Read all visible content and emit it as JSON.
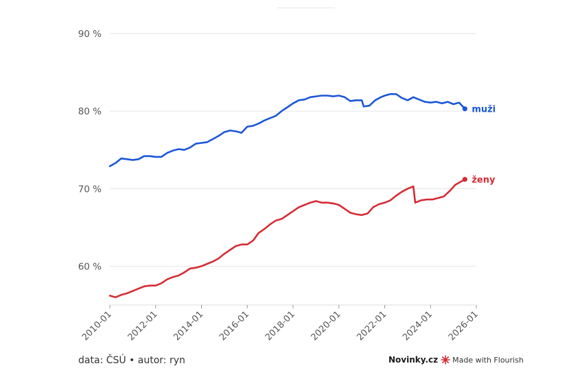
{
  "footer": {
    "source_text": "data: ČSÚ • autor: ryn",
    "brand": "Novinky.cz",
    "made_with": "Made with Flourish"
  },
  "chart_data": {
    "type": "line",
    "ylim": [
      55,
      90
    ],
    "yticks": [
      60,
      70,
      80,
      90
    ],
    "ytick_labels": [
      "60 %",
      "70 %",
      "80 %",
      "90 %"
    ],
    "xlim": [
      "2010-01",
      "2026-01"
    ],
    "xticks": [
      "2010-01",
      "2012-01",
      "2014-01",
      "2016-01",
      "2018-01",
      "2020-01",
      "2022-01",
      "2024-01",
      "2026-01"
    ],
    "grid": true,
    "series": [
      {
        "name": "muži",
        "color": "#1a56d6",
        "points": [
          [
            "2010-01",
            72.9
          ],
          [
            "2010-04",
            73.3
          ],
          [
            "2010-07",
            73.9
          ],
          [
            "2010-10",
            73.8
          ],
          [
            "2011-01",
            73.7
          ],
          [
            "2011-04",
            73.8
          ],
          [
            "2011-07",
            74.2
          ],
          [
            "2011-10",
            74.2
          ],
          [
            "2012-01",
            74.1
          ],
          [
            "2012-04",
            74.1
          ],
          [
            "2012-07",
            74.6
          ],
          [
            "2012-10",
            74.9
          ],
          [
            "2013-01",
            75.1
          ],
          [
            "2013-04",
            75.0
          ],
          [
            "2013-07",
            75.3
          ],
          [
            "2013-10",
            75.8
          ],
          [
            "2014-01",
            75.9
          ],
          [
            "2014-04",
            76.0
          ],
          [
            "2014-07",
            76.4
          ],
          [
            "2014-10",
            76.8
          ],
          [
            "2015-01",
            77.3
          ],
          [
            "2015-04",
            77.5
          ],
          [
            "2015-07",
            77.4
          ],
          [
            "2015-10",
            77.2
          ],
          [
            "2016-01",
            78.0
          ],
          [
            "2016-04",
            78.1
          ],
          [
            "2016-07",
            78.4
          ],
          [
            "2016-10",
            78.8
          ],
          [
            "2017-01",
            79.1
          ],
          [
            "2017-04",
            79.4
          ],
          [
            "2017-07",
            80.0
          ],
          [
            "2017-10",
            80.5
          ],
          [
            "2018-01",
            81.0
          ],
          [
            "2018-04",
            81.4
          ],
          [
            "2018-07",
            81.5
          ],
          [
            "2018-10",
            81.8
          ],
          [
            "2019-01",
            81.9
          ],
          [
            "2019-04",
            82.0
          ],
          [
            "2019-07",
            82.0
          ],
          [
            "2019-10",
            81.9
          ],
          [
            "2020-01",
            82.0
          ],
          [
            "2020-04",
            81.8
          ],
          [
            "2020-07",
            81.3
          ],
          [
            "2020-10",
            81.4
          ],
          [
            "2021-01",
            81.4
          ],
          [
            "2021-02",
            80.6
          ],
          [
            "2021-05",
            80.7
          ],
          [
            "2021-08",
            81.4
          ],
          [
            "2021-11",
            81.8
          ],
          [
            "2022-01",
            82.0
          ],
          [
            "2022-04",
            82.2
          ],
          [
            "2022-07",
            82.2
          ],
          [
            "2022-10",
            81.7
          ],
          [
            "2023-01",
            81.4
          ],
          [
            "2023-04",
            81.8
          ],
          [
            "2023-07",
            81.5
          ],
          [
            "2023-10",
            81.2
          ],
          [
            "2024-01",
            81.1
          ],
          [
            "2024-04",
            81.2
          ],
          [
            "2024-07",
            81.0
          ],
          [
            "2024-10",
            81.2
          ],
          [
            "2025-01",
            80.9
          ],
          [
            "2025-04",
            81.1
          ],
          [
            "2025-07",
            80.3
          ]
        ]
      },
      {
        "name": "ženy",
        "color": "#d42b34",
        "points": [
          [
            "2010-01",
            56.2
          ],
          [
            "2010-04",
            56.0
          ],
          [
            "2010-07",
            56.3
          ],
          [
            "2010-10",
            56.5
          ],
          [
            "2011-01",
            56.8
          ],
          [
            "2011-04",
            57.1
          ],
          [
            "2011-07",
            57.4
          ],
          [
            "2011-10",
            57.5
          ],
          [
            "2012-01",
            57.5
          ],
          [
            "2012-04",
            57.8
          ],
          [
            "2012-07",
            58.3
          ],
          [
            "2012-10",
            58.6
          ],
          [
            "2013-01",
            58.8
          ],
          [
            "2013-04",
            59.2
          ],
          [
            "2013-07",
            59.7
          ],
          [
            "2013-10",
            59.8
          ],
          [
            "2014-01",
            60.0
          ],
          [
            "2014-04",
            60.3
          ],
          [
            "2014-07",
            60.6
          ],
          [
            "2014-10",
            61.0
          ],
          [
            "2015-01",
            61.6
          ],
          [
            "2015-04",
            62.1
          ],
          [
            "2015-07",
            62.6
          ],
          [
            "2015-10",
            62.8
          ],
          [
            "2016-01",
            62.8
          ],
          [
            "2016-04",
            63.3
          ],
          [
            "2016-07",
            64.3
          ],
          [
            "2016-10",
            64.8
          ],
          [
            "2017-01",
            65.4
          ],
          [
            "2017-04",
            65.9
          ],
          [
            "2017-07",
            66.1
          ],
          [
            "2017-10",
            66.6
          ],
          [
            "2018-01",
            67.1
          ],
          [
            "2018-04",
            67.6
          ],
          [
            "2018-07",
            67.9
          ],
          [
            "2018-10",
            68.2
          ],
          [
            "2019-01",
            68.4
          ],
          [
            "2019-04",
            68.2
          ],
          [
            "2019-07",
            68.2
          ],
          [
            "2019-10",
            68.1
          ],
          [
            "2020-01",
            67.9
          ],
          [
            "2020-04",
            67.4
          ],
          [
            "2020-07",
            66.9
          ],
          [
            "2020-10",
            66.7
          ],
          [
            "2021-01",
            66.6
          ],
          [
            "2021-04",
            66.8
          ],
          [
            "2021-07",
            67.6
          ],
          [
            "2021-10",
            68.0
          ],
          [
            "2022-01",
            68.2
          ],
          [
            "2022-04",
            68.5
          ],
          [
            "2022-07",
            69.1
          ],
          [
            "2022-10",
            69.6
          ],
          [
            "2023-01",
            70.0
          ],
          [
            "2023-04",
            70.3
          ],
          [
            "2023-05",
            68.2
          ],
          [
            "2023-08",
            68.5
          ],
          [
            "2023-11",
            68.6
          ],
          [
            "2024-02",
            68.6
          ],
          [
            "2024-05",
            68.8
          ],
          [
            "2024-08",
            69.0
          ],
          [
            "2024-11",
            69.7
          ],
          [
            "2025-02",
            70.5
          ],
          [
            "2025-07",
            71.2
          ]
        ]
      }
    ]
  }
}
